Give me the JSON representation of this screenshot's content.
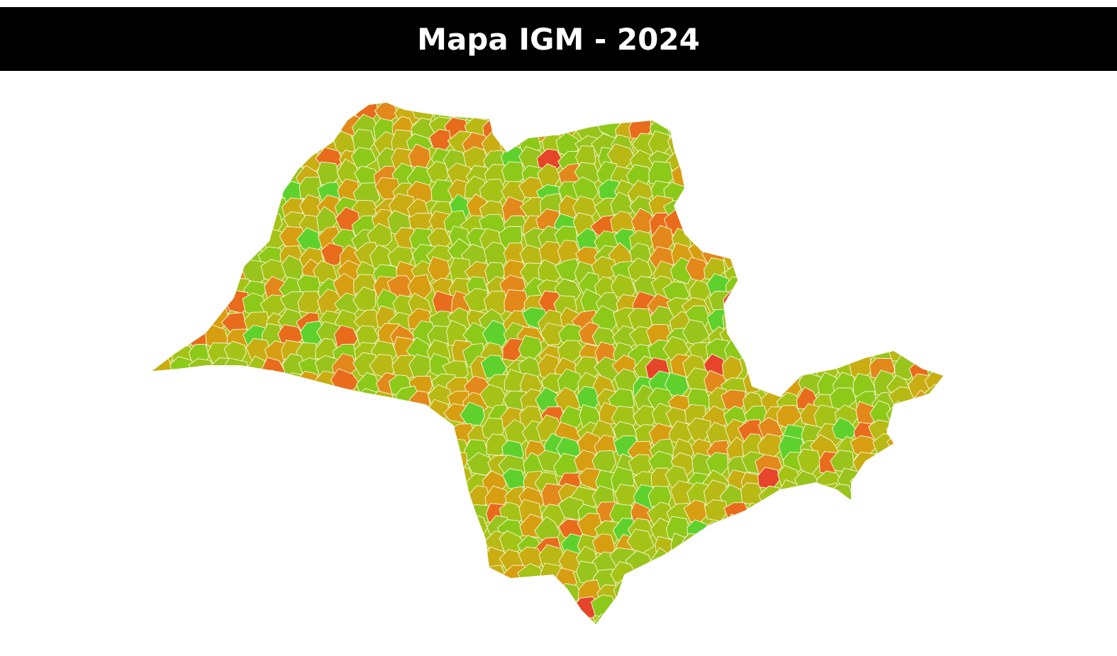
{
  "header": {
    "title": "Mapa IGM - 2024"
  }
}
